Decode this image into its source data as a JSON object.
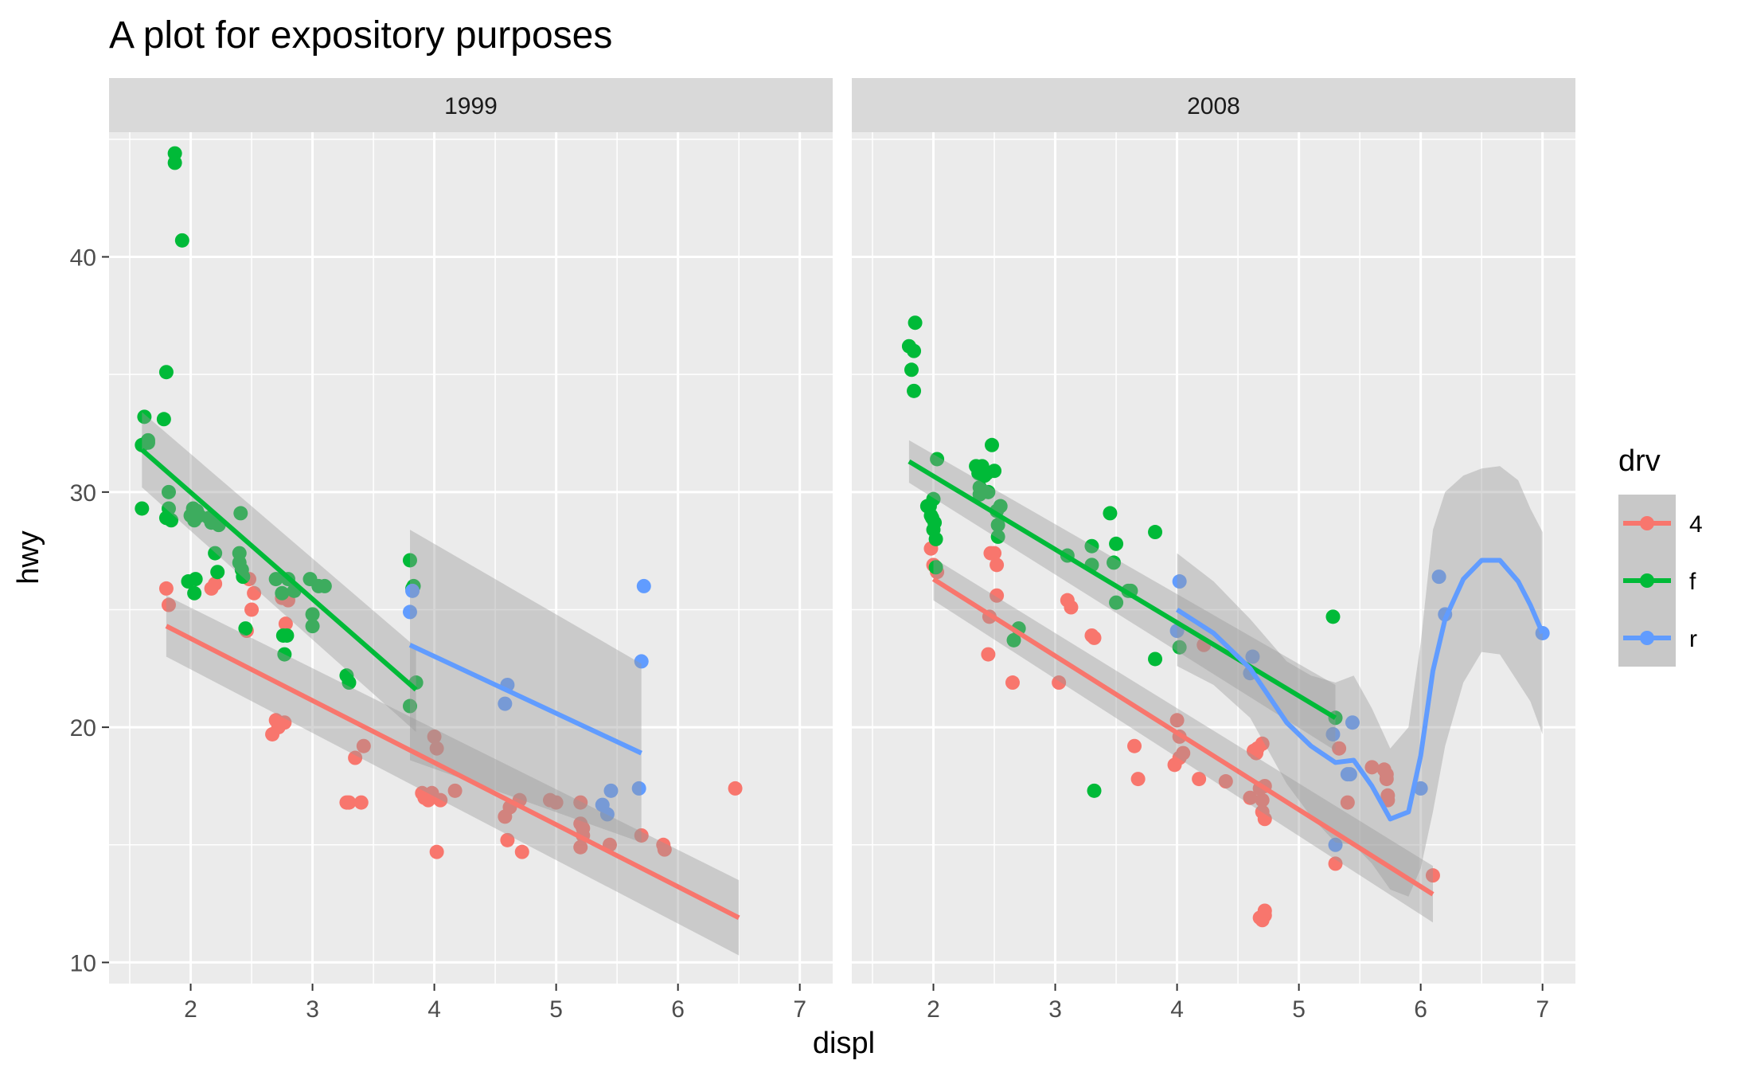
{
  "chart_data": {
    "type": "scatter",
    "title": "A plot for expository purposes",
    "xlabel": "displ",
    "ylabel": "hwy",
    "xlim": [
      1.33,
      7.27
    ],
    "ylim": [
      9.1,
      45.3
    ],
    "x_ticks": [
      2,
      3,
      4,
      5,
      6,
      7
    ],
    "y_ticks": [
      10,
      20,
      30,
      40
    ],
    "grid": true,
    "legend": {
      "title": "drv",
      "position": "right",
      "entries": [
        {
          "label": "4",
          "color": "#F8766D"
        },
        {
          "label": "f",
          "color": "#00BA38"
        },
        {
          "label": "r",
          "color": "#619CFF"
        }
      ]
    },
    "colors": {
      "4": "#F8766D",
      "f": "#00BA38",
      "r": "#619CFF"
    },
    "panels": [
      {
        "strip": "1999",
        "points": {
          "f": [
            [
              1.6,
              32
            ],
            [
              1.6,
              29.3
            ],
            [
              1.62,
              33.2
            ],
            [
              1.65,
              32.2
            ],
            [
              1.65,
              32.1
            ],
            [
              1.78,
              33.1
            ],
            [
              1.8,
              35.1
            ],
            [
              1.8,
              28.9
            ],
            [
              1.82,
              29.3
            ],
            [
              1.82,
              30
            ],
            [
              1.84,
              28.8
            ],
            [
              1.87,
              44.4
            ],
            [
              1.87,
              44
            ],
            [
              1.93,
              40.7
            ],
            [
              1.98,
              26.2
            ],
            [
              2.0,
              29
            ],
            [
              2.02,
              29.3
            ],
            [
              2.03,
              28.8
            ],
            [
              2.03,
              25.7
            ],
            [
              2.04,
              26.3
            ],
            [
              2.05,
              29.2
            ],
            [
              2.07,
              29
            ],
            [
              2.15,
              28.9
            ],
            [
              2.17,
              28.7
            ],
            [
              2.2,
              27.4
            ],
            [
              2.22,
              26.6
            ],
            [
              2.23,
              28.6
            ],
            [
              2.4,
              27.4
            ],
            [
              2.4,
              27
            ],
            [
              2.41,
              29.1
            ],
            [
              2.42,
              26.7
            ],
            [
              2.43,
              26.4
            ],
            [
              2.45,
              24.2
            ],
            [
              2.7,
              26.3
            ],
            [
              2.75,
              25.7
            ],
            [
              2.76,
              23.9
            ],
            [
              2.77,
              23.1
            ],
            [
              2.79,
              23.9
            ],
            [
              2.8,
              26.3
            ],
            [
              2.85,
              25.8
            ],
            [
              2.98,
              26.3
            ],
            [
              3.0,
              24.8
            ],
            [
              3.0,
              24.3
            ],
            [
              3.05,
              26
            ],
            [
              3.1,
              26
            ],
            [
              3.28,
              22.2
            ],
            [
              3.3,
              21.9
            ],
            [
              3.8,
              27.1
            ],
            [
              3.8,
              20.9
            ],
            [
              3.82,
              25.9
            ],
            [
              3.83,
              26
            ],
            [
              3.85,
              21.9
            ]
          ],
          "4": [
            [
              1.8,
              25.9
            ],
            [
              1.82,
              25.2
            ],
            [
              2.17,
              25.9
            ],
            [
              2.2,
              26.1
            ],
            [
              2.46,
              24.1
            ],
            [
              2.48,
              26.3
            ],
            [
              2.5,
              25
            ],
            [
              2.52,
              25.7
            ],
            [
              2.75,
              25.5
            ],
            [
              2.78,
              24.4
            ],
            [
              2.8,
              25.4
            ],
            [
              2.67,
              19.7
            ],
            [
              2.7,
              20.3
            ],
            [
              2.72,
              20
            ],
            [
              2.77,
              20.2
            ],
            [
              3.28,
              16.8
            ],
            [
              3.3,
              16.8
            ],
            [
              3.35,
              18.7
            ],
            [
              3.4,
              16.8
            ],
            [
              3.42,
              19.2
            ],
            [
              3.9,
              17.2
            ],
            [
              3.92,
              17
            ],
            [
              3.95,
              16.9
            ],
            [
              3.98,
              17.2
            ],
            [
              4.0,
              19.6
            ],
            [
              4.02,
              19.1
            ],
            [
              4.02,
              14.7
            ],
            [
              4.05,
              16.9
            ],
            [
              4.17,
              17.3
            ],
            [
              4.58,
              16.2
            ],
            [
              4.6,
              15.2
            ],
            [
              4.62,
              16.6
            ],
            [
              4.7,
              16.9
            ],
            [
              4.72,
              14.7
            ],
            [
              4.95,
              16.9
            ],
            [
              5.0,
              16.8
            ],
            [
              5.2,
              16.8
            ],
            [
              5.2,
              15.9
            ],
            [
              5.22,
              15.7
            ],
            [
              5.2,
              14.9
            ],
            [
              5.22,
              15.4
            ],
            [
              5.44,
              15
            ],
            [
              5.7,
              15.4
            ],
            [
              5.88,
              15
            ],
            [
              5.89,
              14.8
            ],
            [
              6.47,
              17.4
            ]
          ],
          "r": [
            [
              3.8,
              24.9
            ],
            [
              3.82,
              25.8
            ],
            [
              4.58,
              21
            ],
            [
              4.6,
              21.8
            ],
            [
              5.38,
              16.7
            ],
            [
              5.42,
              16.3
            ],
            [
              5.45,
              17.3
            ],
            [
              5.68,
              17.4
            ],
            [
              5.7,
              22.8
            ],
            [
              5.72,
              26
            ]
          ]
        },
        "fits": [
          {
            "drv": "f",
            "kind": "linear",
            "x": [
              1.6,
              3.85
            ],
            "y": [
              31.8,
              21.6
            ],
            "band_halfwidth": [
              1.6,
              1.8
            ]
          },
          {
            "drv": "4",
            "kind": "linear",
            "x": [
              1.8,
              6.5
            ],
            "y": [
              24.3,
              11.9
            ],
            "band_halfwidth": [
              1.3,
              1.6
            ]
          },
          {
            "drv": "r",
            "kind": "linear",
            "x": [
              3.8,
              5.7
            ],
            "y": [
              23.5,
              18.9
            ],
            "band_halfwidth": [
              4.9,
              3.8
            ]
          }
        ]
      },
      {
        "strip": "2008",
        "points": {
          "f": [
            [
              1.8,
              36.2
            ],
            [
              1.82,
              35.2
            ],
            [
              1.84,
              36
            ],
            [
              1.84,
              34.3
            ],
            [
              1.85,
              37.2
            ],
            [
              1.95,
              29.4
            ],
            [
              1.97,
              29.4
            ],
            [
              1.98,
              29
            ],
            [
              1.99,
              28.9
            ],
            [
              2.0,
              29.7
            ],
            [
              2.0,
              28.4
            ],
            [
              2.01,
              28.7
            ],
            [
              2.02,
              28
            ],
            [
              2.02,
              26.8
            ],
            [
              2.03,
              31.4
            ],
            [
              2.35,
              31.1
            ],
            [
              2.37,
              30.8
            ],
            [
              2.38,
              30.2
            ],
            [
              2.38,
              29.9
            ],
            [
              2.4,
              31.1
            ],
            [
              2.42,
              30.7
            ],
            [
              2.44,
              30.8
            ],
            [
              2.45,
              30
            ],
            [
              2.48,
              32
            ],
            [
              2.5,
              30.9
            ],
            [
              2.52,
              29.2
            ],
            [
              2.53,
              28.6
            ],
            [
              2.55,
              29.4
            ],
            [
              2.53,
              28.1
            ],
            [
              2.66,
              23.7
            ],
            [
              2.7,
              24.2
            ],
            [
              3.1,
              27.3
            ],
            [
              3.3,
              27.7
            ],
            [
              3.3,
              26.9
            ],
            [
              3.32,
              17.3
            ],
            [
              3.45,
              29.1
            ],
            [
              3.5,
              27.8
            ],
            [
              3.48,
              27
            ],
            [
              3.5,
              25.3
            ],
            [
              3.6,
              25.8
            ],
            [
              3.62,
              25.8
            ],
            [
              3.82,
              28.3
            ],
            [
              3.82,
              22.9
            ],
            [
              4.02,
              23.4
            ],
            [
              5.28,
              24.7
            ],
            [
              5.3,
              20.4
            ]
          ],
          "4": [
            [
              1.98,
              27.6
            ],
            [
              2.0,
              26.9
            ],
            [
              2.03,
              26.6
            ],
            [
              2.46,
              24.7
            ],
            [
              2.47,
              27.4
            ],
            [
              2.5,
              27.4
            ],
            [
              2.52,
              26.9
            ],
            [
              2.52,
              25.6
            ],
            [
              2.45,
              23.1
            ],
            [
              2.65,
              21.9
            ],
            [
              3.03,
              21.9
            ],
            [
              3.1,
              25.4
            ],
            [
              3.13,
              25.1
            ],
            [
              3.3,
              23.9
            ],
            [
              3.32,
              23.8
            ],
            [
              3.65,
              19.2
            ],
            [
              3.68,
              17.8
            ],
            [
              3.98,
              18.4
            ],
            [
              4.0,
              20.3
            ],
            [
              4.02,
              18.7
            ],
            [
              4.02,
              19.6
            ],
            [
              4.05,
              18.9
            ],
            [
              4.18,
              17.8
            ],
            [
              4.22,
              23.5
            ],
            [
              4.4,
              17.7
            ],
            [
              4.6,
              17
            ],
            [
              4.63,
              19
            ],
            [
              4.65,
              18.9
            ],
            [
              4.66,
              19.1
            ],
            [
              4.68,
              17.4
            ],
            [
              4.7,
              16.9
            ],
            [
              4.7,
              16.4
            ],
            [
              4.72,
              16.1
            ],
            [
              4.7,
              19.3
            ],
            [
              4.72,
              17.5
            ],
            [
              4.68,
              11.9
            ],
            [
              4.7,
              11.8
            ],
            [
              4.72,
              12
            ],
            [
              4.72,
              12.2
            ],
            [
              5.3,
              14.2
            ],
            [
              5.33,
              19.1
            ],
            [
              5.4,
              16.8
            ],
            [
              5.6,
              18.3
            ],
            [
              5.7,
              18.2
            ],
            [
              5.72,
              17.8
            ],
            [
              5.73,
              17.1
            ],
            [
              5.73,
              16.9
            ],
            [
              5.72,
              18
            ],
            [
              6.1,
              13.7
            ]
          ],
          "r": [
            [
              4.0,
              24.1
            ],
            [
              4.02,
              26.2
            ],
            [
              4.6,
              22.3
            ],
            [
              4.62,
              23
            ],
            [
              5.28,
              19.7
            ],
            [
              5.3,
              15
            ],
            [
              5.4,
              18
            ],
            [
              5.44,
              20.2
            ],
            [
              5.42,
              18
            ],
            [
              6.0,
              17.4
            ],
            [
              6.15,
              26.4
            ],
            [
              6.2,
              24.8
            ],
            [
              7.0,
              24
            ]
          ]
        },
        "fits": [
          {
            "drv": "f",
            "kind": "linear",
            "x": [
              1.8,
              5.3
            ],
            "y": [
              31.3,
              20.4
            ],
            "band_halfwidth": [
              0.9,
              1.4
            ]
          },
          {
            "drv": "4",
            "kind": "linear",
            "x": [
              2.0,
              6.1
            ],
            "y": [
              26.3,
              12.9
            ],
            "band_halfwidth": [
              0.9,
              1.2
            ]
          },
          {
            "drv": "r",
            "kind": "loess",
            "x": [
              4.0,
              4.3,
              4.6,
              4.9,
              5.1,
              5.3,
              5.45,
              5.6,
              5.75,
              5.9,
              6.0,
              6.1,
              6.2,
              6.35,
              6.5,
              6.65,
              6.8,
              6.9,
              7.0
            ],
            "y": [
              25.0,
              24.0,
              22.5,
              20.2,
              19.2,
              18.5,
              18.6,
              17.5,
              16.1,
              16.4,
              18.8,
              22.4,
              24.6,
              26.3,
              27.1,
              27.1,
              26.2,
              25.2,
              24.0
            ],
            "band_halfwidth": [
              2.4,
              2.2,
              2.1,
              2.6,
              3.0,
              3.4,
              3.6,
              3.3,
              3.0,
              3.6,
              4.8,
              6.0,
              5.4,
              4.4,
              3.9,
              4.0,
              4.3,
              4.1,
              4.3
            ]
          }
        ]
      }
    ]
  }
}
